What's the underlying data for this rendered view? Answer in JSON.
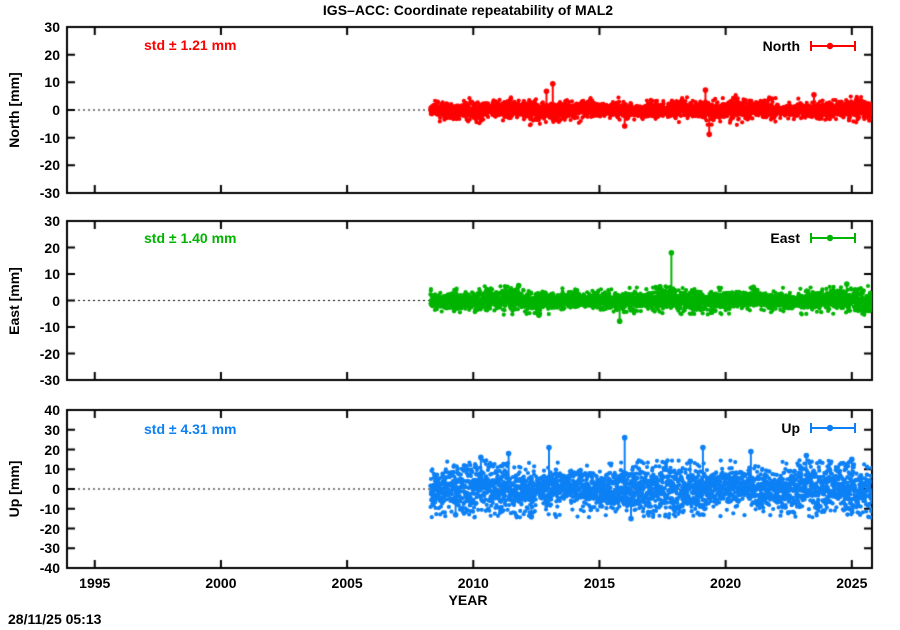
{
  "chart": {
    "title": "IGS–ACC: Coordinate repeatability of MAL2",
    "xlabel": "YEAR",
    "timestamp": "28/11/25 05:13"
  },
  "chart_data": [
    {
      "type": "scatter",
      "series": "North",
      "ylabel": "North [mm]",
      "legend_label": "North",
      "std_label": "std ± 1.21 mm",
      "std_mm": 1.21,
      "color": "#ff0000",
      "xlim": [
        1993.9,
        2025.8
      ],
      "xticks": [
        1995,
        2000,
        2005,
        2010,
        2015,
        2020,
        2025
      ],
      "ylim": [
        -30,
        30
      ],
      "yticks": [
        -30,
        -20,
        -10,
        0,
        10,
        20,
        30
      ],
      "zero_line": true,
      "grid": false,
      "legend_position": "top-right",
      "data_start": 2008.3,
      "data_end": 2025.8,
      "outliers": [
        [
          2013.15,
          9.5
        ],
        [
          2012.9,
          6.8
        ],
        [
          2019.2,
          7.2
        ],
        [
          2019.35,
          -8.8
        ],
        [
          2016.0,
          -5.8
        ],
        [
          2023.5,
          5.5
        ]
      ]
    },
    {
      "type": "scatter",
      "series": "East",
      "ylabel": "East [mm]",
      "legend_label": "East",
      "std_label": "std ± 1.40 mm",
      "std_mm": 1.4,
      "color": "#00b400",
      "xlim": [
        1993.9,
        2025.8
      ],
      "xticks": [
        1995,
        2000,
        2005,
        2010,
        2015,
        2020,
        2025
      ],
      "ylim": [
        -30,
        30
      ],
      "yticks": [
        -30,
        -20,
        -10,
        0,
        10,
        20,
        30
      ],
      "zero_line": true,
      "grid": false,
      "legend_position": "top-right",
      "data_start": 2008.3,
      "data_end": 2025.8,
      "outliers": [
        [
          2017.85,
          18
        ],
        [
          2015.8,
          -7.8
        ],
        [
          2012.6,
          -5.6
        ],
        [
          2011.8,
          5.6
        ],
        [
          2024.8,
          6.2
        ],
        [
          2021.1,
          5.0
        ]
      ]
    },
    {
      "type": "scatter",
      "series": "Up",
      "ylabel": "Up [mm]",
      "legend_label": "Up",
      "std_label": "std ± 4.31 mm",
      "std_mm": 4.31,
      "color": "#0d80f5",
      "xlim": [
        1993.9,
        2025.8
      ],
      "xticks": [
        1995,
        2000,
        2005,
        2010,
        2015,
        2020,
        2025
      ],
      "ylim": [
        -40,
        40
      ],
      "yticks": [
        -40,
        -30,
        -20,
        -10,
        0,
        10,
        20,
        30,
        40
      ],
      "zero_line": true,
      "grid": false,
      "legend_position": "top-right",
      "data_start": 2008.3,
      "data_end": 2025.8,
      "outliers": [
        [
          2016.0,
          26
        ],
        [
          2013.0,
          21
        ],
        [
          2019.1,
          21
        ],
        [
          2021.0,
          19
        ],
        [
          2011.4,
          18
        ],
        [
          2010.3,
          16
        ],
        [
          2023.2,
          17
        ],
        [
          2025.0,
          15
        ],
        [
          2018.6,
          14
        ],
        [
          2009.3,
          -13
        ],
        [
          2016.25,
          -15
        ],
        [
          2012.3,
          -14
        ]
      ]
    }
  ]
}
